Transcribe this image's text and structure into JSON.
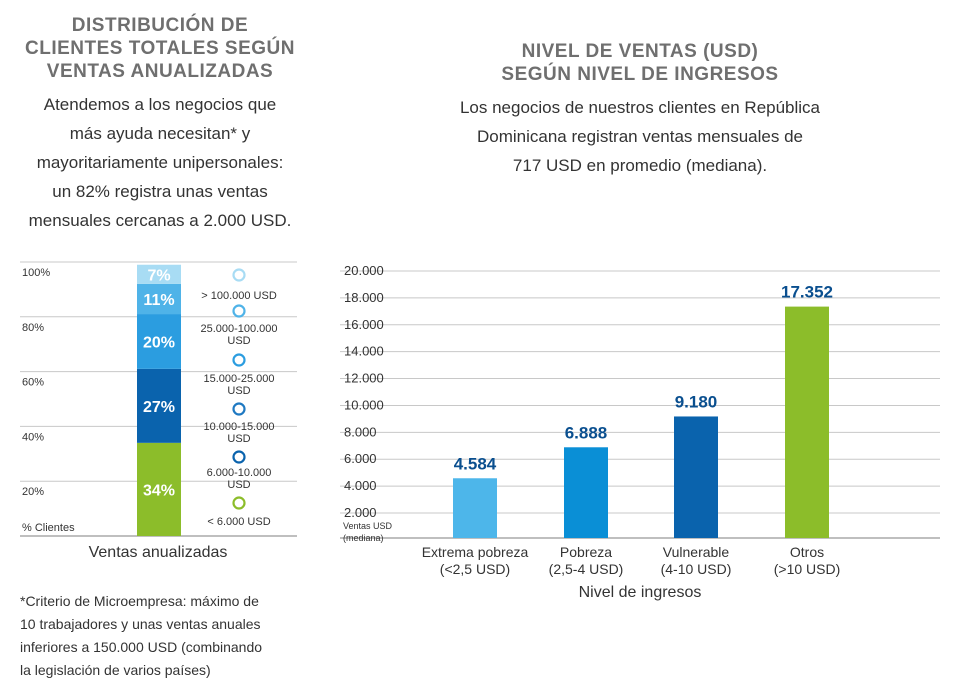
{
  "left": {
    "title_lines": [
      "DISTRIBUCIÓN DE",
      "CLIENTES TOTALES SEGÚN",
      "VENTAS ANUALIZADAS"
    ],
    "body_lines": [
      "Atendemos a los negocios que",
      "más ayuda necesitan* y",
      "mayoritariamente unipersonales:",
      "un 82% registra unas ventas",
      "mensuales cercanas a 2.000 USD."
    ],
    "footnote_lines": [
      "*Criterio de Microempresa: máximo de",
      "10 trabajadores y unas ventas anuales",
      "inferiores a 150.000 USD (combinando",
      "la legislación de varios países)"
    ]
  },
  "right": {
    "title_lines": [
      "NIVEL DE VENTAS (USD)",
      "SEGÚN NIVEL DE INGRESOS"
    ],
    "body_lines": [
      "Los negocios de nuestros clientes en República",
      "Dominicana registran ventas mensuales de",
      "717 USD en promedio (mediana)."
    ]
  },
  "chart_data": [
    {
      "type": "bar",
      "stacked": true,
      "xlabel": "Ventas anualizadas",
      "ylabel": "% Clientes",
      "y_ticks": [
        "20%",
        "40%",
        "60%",
        "80%",
        "100%"
      ],
      "series": [
        {
          "name": "< 6.000 USD",
          "value": 34,
          "label": "34%",
          "color": "#8cbd2a"
        },
        {
          "name": "6.000-10.000 USD",
          "value": 27,
          "label": "27%",
          "color": "#0a63ad"
        },
        {
          "name": "10.000-15.000 USD",
          "value": 0,
          "label": "",
          "color": "#1f79c2"
        },
        {
          "name": "15.000-25.000 USD",
          "value": 20,
          "label": "20%",
          "color": "#2b9de0"
        },
        {
          "name": "25.000-100.000 USD",
          "value": 11,
          "label": "11%",
          "color": "#4fb3e8"
        },
        {
          "name": "> 100.000 USD",
          "value": 7,
          "label": "7%",
          "color": "#a8dcf4"
        }
      ],
      "legend_placement": "right",
      "grid": true
    },
    {
      "type": "bar",
      "title": "",
      "xlabel": "Nivel de ingresos",
      "ylabel_lines": [
        "Ventas USD",
        "(mediana)"
      ],
      "ylim": [
        0,
        20000
      ],
      "y_ticks": [
        "2.000",
        "4.000",
        "6.000",
        "8.000",
        "10.000",
        "12.000",
        "14.000",
        "16.000",
        "18.000",
        "20.000"
      ],
      "categories": [
        [
          "Extrema pobreza",
          "(<2,5 USD)"
        ],
        [
          "Pobreza",
          "(2,5-4 USD)"
        ],
        [
          "Vulnerable",
          "(4-10 USD)"
        ],
        [
          "Otros",
          "(>10 USD)"
        ]
      ],
      "values": [
        4584,
        6888,
        9180,
        17352
      ],
      "value_labels": [
        "4.584",
        "6.888",
        "9.180",
        "17.352"
      ],
      "colors": [
        "#4db6ea",
        "#0a8fd6",
        "#0a63ad",
        "#8cbd2a"
      ],
      "value_label_color": "#0a4f8f",
      "grid": true
    }
  ]
}
